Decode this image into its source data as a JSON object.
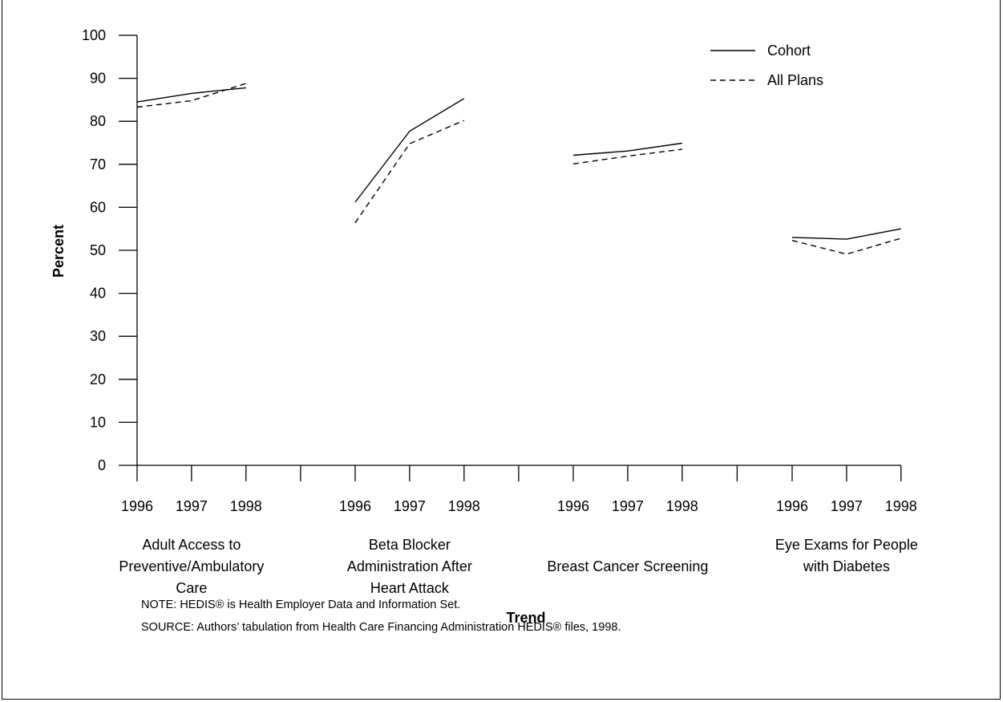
{
  "chart_data": {
    "type": "line",
    "title": "",
    "xlabel": "Trend",
    "ylabel": "Percent",
    "ylim": [
      0,
      100
    ],
    "yticks": [
      0,
      10,
      20,
      30,
      40,
      50,
      60,
      70,
      80,
      90,
      100
    ],
    "grid": false,
    "legend_position": "top-right",
    "legend": [
      {
        "name": "Cohort",
        "style": "solid"
      },
      {
        "name": "All Plans",
        "style": "dashed"
      }
    ],
    "groups": [
      {
        "label_lines": [
          "Adult Access to",
          "Preventive/Ambulatory",
          "Care"
        ],
        "years": [
          "1996",
          "1997",
          "1998"
        ],
        "series": [
          {
            "name": "Cohort",
            "values": [
              84.5,
              86.5,
              87.8
            ]
          },
          {
            "name": "All Plans",
            "values": [
              83.3,
              84.8,
              88.8
            ]
          }
        ]
      },
      {
        "label_lines": [
          "Beta Blocker",
          "Administration After",
          "Heart Attack"
        ],
        "years": [
          "1996",
          "1997",
          "1998"
        ],
        "series": [
          {
            "name": "Cohort",
            "values": [
              61.2,
              77.7,
              85.3
            ]
          },
          {
            "name": "All Plans",
            "values": [
              56.4,
              74.8,
              80.2
            ]
          }
        ]
      },
      {
        "label_lines": [
          "Breast Cancer Screening"
        ],
        "years": [
          "1996",
          "1997",
          "1998"
        ],
        "series": [
          {
            "name": "Cohort",
            "values": [
              72.1,
              73.1,
              74.9
            ]
          },
          {
            "name": "All Plans",
            "values": [
              70.1,
              71.9,
              73.5
            ]
          }
        ]
      },
      {
        "label_lines": [
          "Eye Exams for People",
          "with Diabetes"
        ],
        "years": [
          "1996",
          "1997",
          "1998"
        ],
        "series": [
          {
            "name": "Cohort",
            "values": [
              53.0,
              52.6,
              55.0
            ]
          },
          {
            "name": "All Plans",
            "values": [
              52.3,
              49.1,
              52.8
            ]
          }
        ]
      }
    ]
  },
  "notes": {
    "note": "NOTE: HEDIS® is Health Employer Data and Information Set.",
    "source": "SOURCE: Authors’ tabulation from Health Care Financing Administration HEDIS® files, 1998."
  }
}
